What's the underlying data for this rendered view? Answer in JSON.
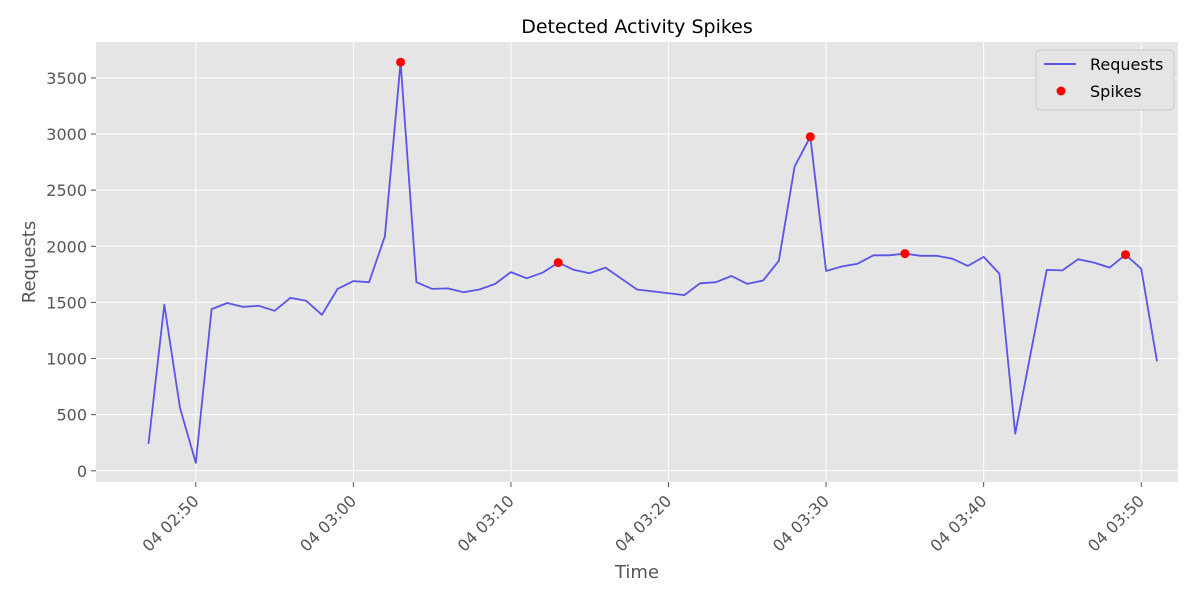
{
  "chart_data": {
    "type": "line",
    "title": "Detected Activity Spikes",
    "xlabel": "Time",
    "ylabel": "Requests",
    "x_type": "datetime",
    "x_tick_labels": [
      "04 02:50",
      "04 03:00",
      "04 03:10",
      "04 03:20",
      "04 03:30",
      "04 03:40",
      "04 03:50"
    ],
    "y_ticks": [
      0,
      500,
      1000,
      1500,
      2000,
      2500,
      3000,
      3500
    ],
    "ylim": [
      -100,
      3820
    ],
    "xlim": [
      "04 02:43:40",
      "04 03:52:20"
    ],
    "grid": true,
    "legend_position": "top-right",
    "series": [
      {
        "name": "Requests",
        "color": "#5a55e8",
        "style": "line",
        "points": [
          [
            "04 02:47",
            240
          ],
          [
            "04 02:48",
            1480
          ],
          [
            "04 02:49",
            560
          ],
          [
            "04 02:50",
            70
          ],
          [
            "04 02:51",
            1440
          ],
          [
            "04 02:52",
            1495
          ],
          [
            "04 02:53",
            1460
          ],
          [
            "04 02:54",
            1470
          ],
          [
            "04 02:55",
            1425
          ],
          [
            "04 02:56",
            1540
          ],
          [
            "04 02:57",
            1515
          ],
          [
            "04 02:58",
            1390
          ],
          [
            "04 02:59",
            1620
          ],
          [
            "04 03:00",
            1690
          ],
          [
            "04 03:01",
            1680
          ],
          [
            "04 03:02",
            2090
          ],
          [
            "04 03:03",
            3640
          ],
          [
            "04 03:04",
            1680
          ],
          [
            "04 03:05",
            1620
          ],
          [
            "04 03:06",
            1625
          ],
          [
            "04 03:07",
            1590
          ],
          [
            "04 03:08",
            1615
          ],
          [
            "04 03:09",
            1665
          ],
          [
            "04 03:10",
            1770
          ],
          [
            "04 03:11",
            1715
          ],
          [
            "04 03:12",
            1765
          ],
          [
            "04 03:13",
            1855
          ],
          [
            "04 03:14",
            1790
          ],
          [
            "04 03:15",
            1760
          ],
          [
            "04 03:16",
            1810
          ],
          [
            "04 03:18",
            1615
          ],
          [
            "04 03:21",
            1565
          ],
          [
            "04 03:22",
            1670
          ],
          [
            "04 03:23",
            1680
          ],
          [
            "04 03:24",
            1735
          ],
          [
            "04 03:25",
            1665
          ],
          [
            "04 03:26",
            1695
          ],
          [
            "04 03:27",
            1870
          ],
          [
            "04 03:28",
            2710
          ],
          [
            "04 03:29",
            2975
          ],
          [
            "04 03:30",
            1780
          ],
          [
            "04 03:31",
            1820
          ],
          [
            "04 03:32",
            1845
          ],
          [
            "04 03:33",
            1920
          ],
          [
            "04 03:34",
            1920
          ],
          [
            "04 03:35",
            1935
          ],
          [
            "04 03:36",
            1915
          ],
          [
            "04 03:37",
            1915
          ],
          [
            "04 03:38",
            1890
          ],
          [
            "04 03:39",
            1825
          ],
          [
            "04 03:40",
            1905
          ],
          [
            "04 03:41",
            1755
          ],
          [
            "04 03:42",
            330
          ],
          [
            "04 03:44",
            1790
          ],
          [
            "04 03:45",
            1785
          ],
          [
            "04 03:46",
            1885
          ],
          [
            "04 03:47",
            1855
          ],
          [
            "04 03:48",
            1810
          ],
          [
            "04 03:49",
            1925
          ],
          [
            "04 03:50",
            1800
          ],
          [
            "04 03:51",
            975
          ]
        ]
      },
      {
        "name": "Spikes",
        "color": "#ff0000",
        "style": "marker",
        "points": [
          [
            "04 03:03",
            3640
          ],
          [
            "04 03:13",
            1855
          ],
          [
            "04 03:29",
            2975
          ],
          [
            "04 03:35",
            1935
          ],
          [
            "04 03:49",
            1925
          ]
        ]
      }
    ]
  }
}
